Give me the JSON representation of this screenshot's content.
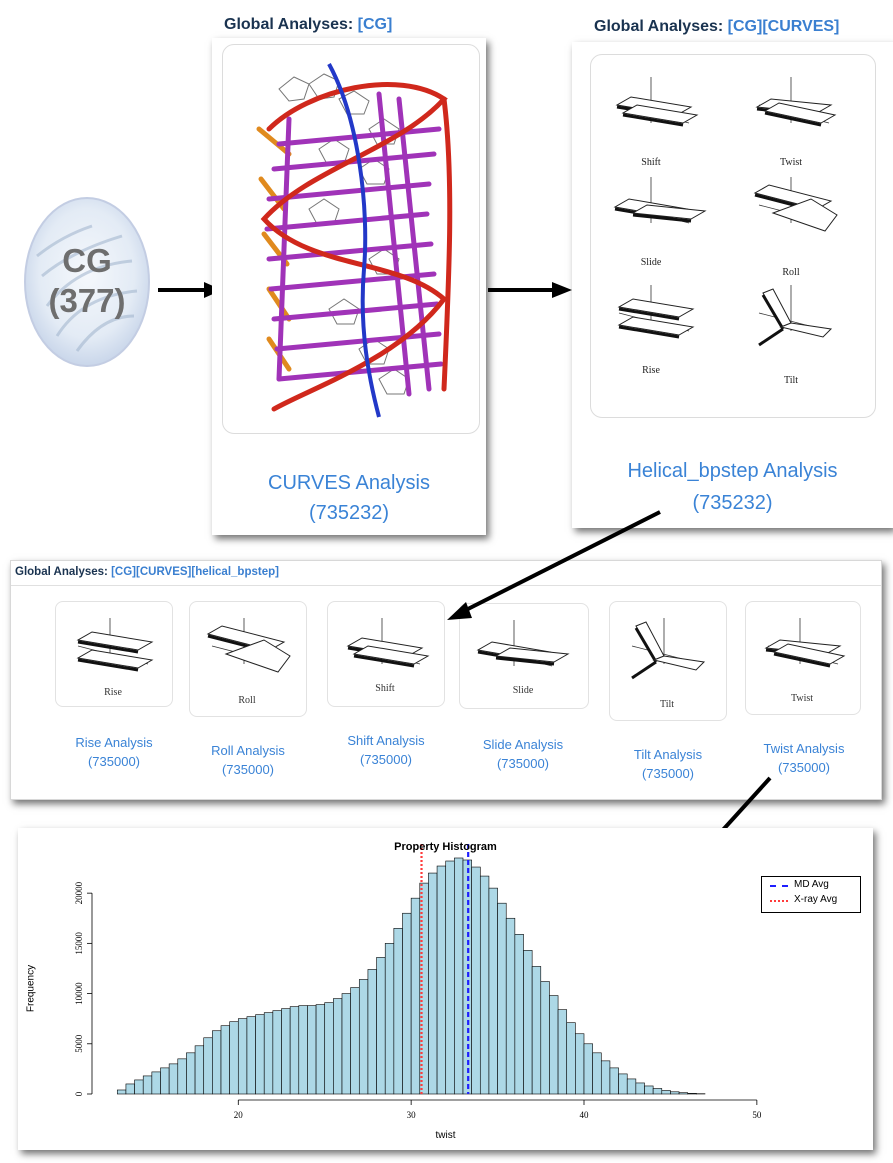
{
  "source_node": {
    "label": "CG",
    "count": "(377)"
  },
  "panel_cg": {
    "header_prefix": "Global Analyses: ",
    "breadcrumb": [
      "[CG]"
    ],
    "title": "CURVES Analysis",
    "count": "(735232)"
  },
  "panel_curves": {
    "header_prefix": "Global Analyses: ",
    "breadcrumb": [
      "[CG]",
      "[CURVES]"
    ],
    "title": "Helical_bpstep Analysis",
    "count": "(735232)",
    "diagram_labels": [
      "Shift",
      "Twist",
      "Slide",
      "Roll",
      "Rise",
      "Tilt"
    ]
  },
  "panel_bpstep": {
    "header_prefix": "Global Analyses: ",
    "breadcrumb": [
      "[CG]",
      "[CURVES]",
      "[helical_bpstep]"
    ],
    "items": [
      {
        "thumb": "Rise",
        "title": "Rise Analysis",
        "count": "(735000)"
      },
      {
        "thumb": "Roll",
        "title": "Roll Analysis",
        "count": "(735000)"
      },
      {
        "thumb": "Shift",
        "title": "Shift Analysis",
        "count": "(735000)"
      },
      {
        "thumb": "Slide",
        "title": "Slide Analysis",
        "count": "(735000)"
      },
      {
        "thumb": "Tilt",
        "title": "Tilt Analysis",
        "count": "(735000)"
      },
      {
        "thumb": "Twist",
        "title": "Twist Analysis",
        "count": "(735000)"
      }
    ]
  },
  "chart_data": {
    "type": "bar",
    "title": "Property Histogram",
    "xlabel": "twist",
    "ylabel": "Frequency",
    "xlim": [
      12,
      54
    ],
    "ylim": [
      0,
      23500
    ],
    "bin_start": 13,
    "bin_width": 0.5,
    "xticks": [
      20,
      30,
      40,
      50
    ],
    "yticks": [
      0,
      5000,
      10000,
      15000,
      20000
    ],
    "values": [
      400,
      1000,
      1400,
      1800,
      2200,
      2600,
      3000,
      3500,
      4100,
      4800,
      5600,
      6300,
      6800,
      7200,
      7500,
      7700,
      7900,
      8100,
      8300,
      8500,
      8700,
      8800,
      8800,
      8900,
      9100,
      9500,
      10000,
      10600,
      11400,
      12400,
      13600,
      15000,
      16500,
      18000,
      19500,
      21000,
      22000,
      22700,
      23200,
      23500,
      23300,
      22600,
      21700,
      20500,
      19000,
      17500,
      15900,
      14300,
      12700,
      11200,
      9800,
      8400,
      7100,
      6000,
      5000,
      4100,
      3300,
      2600,
      2000,
      1500,
      1100,
      800,
      550,
      350,
      220,
      130,
      70,
      30
    ],
    "bar_color": "#add8e6",
    "lines": [
      {
        "name": "MD Avg",
        "x": 33.3,
        "color": "#1f1fff",
        "style": "dashed"
      },
      {
        "name": "X-ray Avg",
        "x": 30.6,
        "color": "#ff3b3b",
        "style": "dotted"
      }
    ],
    "legend": "top-right"
  }
}
